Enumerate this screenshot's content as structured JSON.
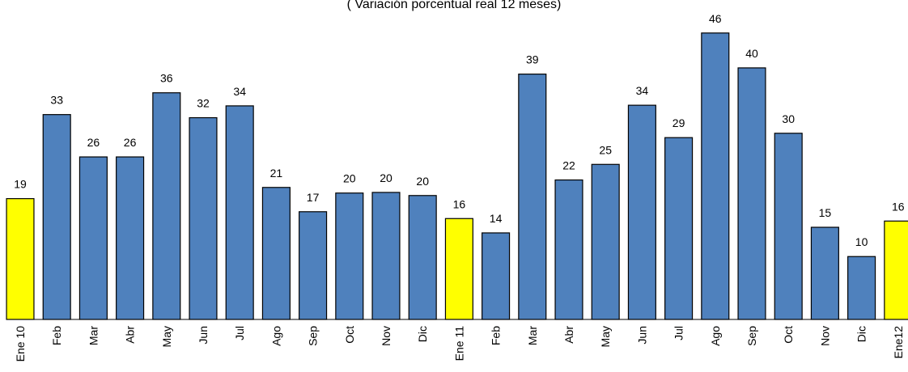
{
  "chart_data": {
    "type": "bar",
    "subtitle": "( Variación porcentual real 12 meses)",
    "categories": [
      "Ene 10",
      "Feb",
      "Mar",
      "Abr",
      "May",
      "Jun",
      "Jul",
      "Ago",
      "Sep",
      "Oct",
      "Nov",
      "Dic",
      "Ene 11",
      "Feb",
      "Mar",
      "Abr",
      "May",
      "Jun",
      "Jul",
      "Ago",
      "Sep",
      "Oct",
      "Nov",
      "Dic",
      "Ene12"
    ],
    "values": [
      19.4,
      32.9,
      26.1,
      26.1,
      36.4,
      32.4,
      34.3,
      21.2,
      17.3,
      20.3,
      20.4,
      19.9,
      16.2,
      13.9,
      39.4,
      22.4,
      24.9,
      34.4,
      29.2,
      46.0,
      40.4,
      29.9,
      14.8,
      10.1,
      15.8
    ],
    "value_labels": [
      "19",
      "33",
      "26",
      "26",
      "36",
      "32",
      "34",
      "21",
      "17",
      "20",
      "20",
      "20",
      "16",
      "14",
      "39",
      "22",
      "25",
      "34",
      "29",
      "46",
      "40",
      "30",
      "15",
      "10",
      "16"
    ],
    "colors": [
      "#ffff00",
      "#4f81bd",
      "#4f81bd",
      "#4f81bd",
      "#4f81bd",
      "#4f81bd",
      "#4f81bd",
      "#4f81bd",
      "#4f81bd",
      "#4f81bd",
      "#4f81bd",
      "#4f81bd",
      "#ffff00",
      "#4f81bd",
      "#4f81bd",
      "#4f81bd",
      "#4f81bd",
      "#4f81bd",
      "#4f81bd",
      "#4f81bd",
      "#4f81bd",
      "#4f81bd",
      "#4f81bd",
      "#4f81bd",
      "#ffff00"
    ],
    "ylim": [
      0,
      51.3
    ]
  }
}
